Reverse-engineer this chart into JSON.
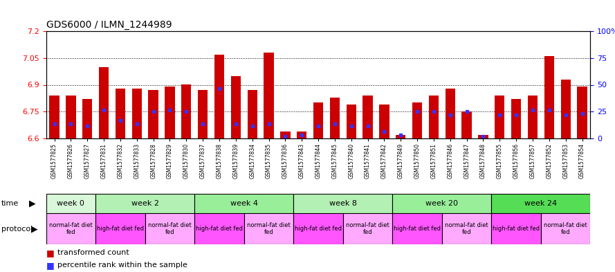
{
  "title": "GDS6000 / ILMN_1244989",
  "samples": [
    "GSM1577825",
    "GSM1577826",
    "GSM1577827",
    "GSM1577831",
    "GSM1577832",
    "GSM1577833",
    "GSM1577828",
    "GSM1577829",
    "GSM1577830",
    "GSM1577837",
    "GSM1577838",
    "GSM1577839",
    "GSM1577834",
    "GSM1577835",
    "GSM1577836",
    "GSM1577843",
    "GSM1577844",
    "GSM1577845",
    "GSM1577840",
    "GSM1577841",
    "GSM1577842",
    "GSM1577849",
    "GSM1577850",
    "GSM1577851",
    "GSM1577846",
    "GSM1577847",
    "GSM1577848",
    "GSM1577855",
    "GSM1577856",
    "GSM1577857",
    "GSM1577852",
    "GSM1577853",
    "GSM1577854"
  ],
  "bar_values": [
    6.84,
    6.84,
    6.82,
    7.0,
    6.88,
    6.88,
    6.87,
    6.89,
    6.9,
    6.87,
    7.07,
    6.95,
    6.87,
    7.08,
    6.64,
    6.64,
    6.8,
    6.83,
    6.79,
    6.84,
    6.79,
    6.62,
    6.8,
    6.84,
    6.88,
    6.75,
    6.62,
    6.84,
    6.82,
    6.84,
    7.06,
    6.93,
    6.89
  ],
  "percentile_values": [
    6.68,
    6.68,
    6.67,
    6.76,
    6.7,
    6.68,
    6.75,
    6.76,
    6.75,
    6.68,
    6.88,
    6.68,
    6.67,
    6.68,
    6.61,
    6.62,
    6.67,
    6.68,
    6.67,
    6.67,
    6.64,
    6.62,
    6.75,
    6.75,
    6.73,
    6.75,
    6.61,
    6.73,
    6.73,
    6.76,
    6.76,
    6.73,
    6.74
  ],
  "ylim": [
    6.6,
    7.2
  ],
  "yticks_left": [
    6.6,
    6.75,
    6.9,
    7.05,
    7.2
  ],
  "yticks_right_pct": [
    0,
    25,
    50,
    75,
    100
  ],
  "gridlines": [
    6.75,
    6.9,
    7.05
  ],
  "bar_color": "#CC0000",
  "blue_color": "#3333FF",
  "plot_bg_color": "#ffffff",
  "fig_bg_color": "#ffffff",
  "time_groups": [
    {
      "label": "week 0",
      "start": 0,
      "end": 2,
      "color": "#d9f7d9"
    },
    {
      "label": "week 2",
      "start": 3,
      "end": 8,
      "color": "#b3f0b3"
    },
    {
      "label": "week 4",
      "start": 9,
      "end": 14,
      "color": "#99ee99"
    },
    {
      "label": "week 8",
      "start": 15,
      "end": 20,
      "color": "#b3f0b3"
    },
    {
      "label": "week 20",
      "start": 21,
      "end": 26,
      "color": "#99ee99"
    },
    {
      "label": "week 24",
      "start": 27,
      "end": 32,
      "color": "#55dd55"
    }
  ],
  "protocol_groups": [
    {
      "label": "normal-fat diet\nfed",
      "start": 0,
      "end": 2,
      "color": "#ffaaff"
    },
    {
      "label": "high-fat diet fed",
      "start": 3,
      "end": 5,
      "color": "#ff55ff"
    },
    {
      "label": "normal-fat diet\nfed",
      "start": 6,
      "end": 8,
      "color": "#ffaaff"
    },
    {
      "label": "high-fat diet fed",
      "start": 9,
      "end": 11,
      "color": "#ff55ff"
    },
    {
      "label": "normal-fat diet\nfed",
      "start": 12,
      "end": 14,
      "color": "#ffaaff"
    },
    {
      "label": "high-fat diet fed",
      "start": 15,
      "end": 17,
      "color": "#ff55ff"
    },
    {
      "label": "normal-fat diet\nfed",
      "start": 18,
      "end": 20,
      "color": "#ffaaff"
    },
    {
      "label": "high-fat diet fed",
      "start": 21,
      "end": 23,
      "color": "#ff55ff"
    },
    {
      "label": "normal-fat diet\nfed",
      "start": 24,
      "end": 26,
      "color": "#ffaaff"
    },
    {
      "label": "high-fat diet fed",
      "start": 27,
      "end": 29,
      "color": "#ff55ff"
    },
    {
      "label": "normal-fat diet\nfed",
      "start": 30,
      "end": 32,
      "color": "#ffaaff"
    }
  ]
}
